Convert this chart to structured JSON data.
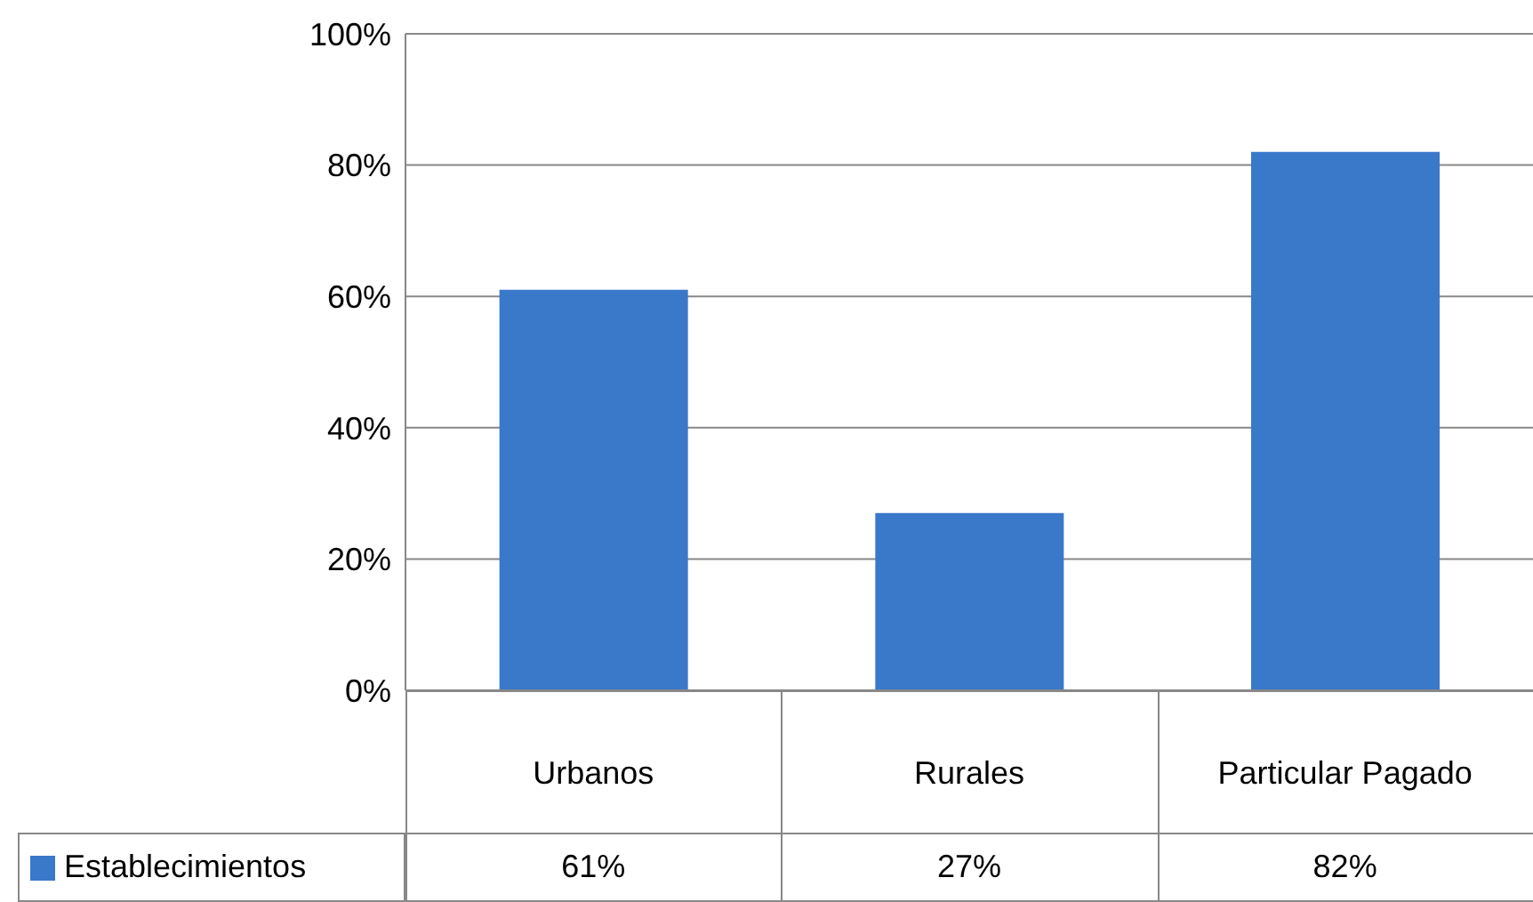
{
  "chart_data": {
    "type": "bar",
    "categories": [
      "Urbanos",
      "Rurales",
      "Particular Pagado"
    ],
    "series": [
      {
        "name": "Establecimientos",
        "color": "#3a78c9",
        "values": [
          61,
          27,
          82
        ],
        "value_labels": [
          "61%",
          "27%",
          "82%"
        ]
      }
    ],
    "ylim": [
      0,
      100
    ],
    "yticks": [
      {
        "value": 0,
        "label": "0%"
      },
      {
        "value": 20,
        "label": "20%"
      },
      {
        "value": 40,
        "label": "40%"
      },
      {
        "value": 60,
        "label": "60%"
      },
      {
        "value": 80,
        "label": "80%"
      },
      {
        "value": 100,
        "label": "100%"
      }
    ],
    "grid": "y",
    "legend": "bottom left"
  }
}
